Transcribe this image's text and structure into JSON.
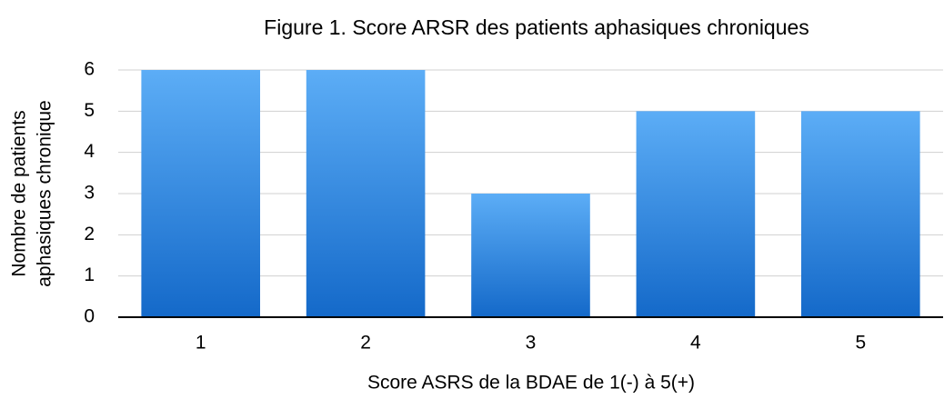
{
  "chart_data": {
    "type": "bar",
    "title": "Figure 1. Score ARSR des patients aphasiques chroniques",
    "xlabel": "Score ASRS de la BDAE de 1(-) à 5(+)",
    "ylabel": [
      "Nombre de patients",
      "aphasiques chronique"
    ],
    "categories": [
      "1",
      "2",
      "3",
      "4",
      "5"
    ],
    "values": [
      6,
      6,
      3,
      5,
      5
    ],
    "gradient": [
      "#5cadf6",
      "#1469c9"
    ],
    "ylim": [
      0,
      6
    ],
    "yticks": [
      0,
      1,
      2,
      3,
      4,
      5,
      6
    ],
    "grid": true
  }
}
